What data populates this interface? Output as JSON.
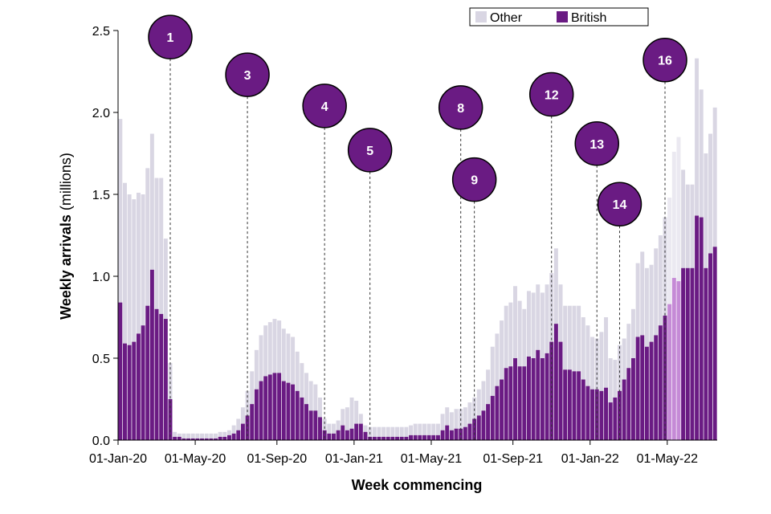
{
  "chart_data": {
    "type": "bar",
    "stacked": true,
    "title": "",
    "xlabel": "Week commencing",
    "ylabel": "Weekly arrivals",
    "ylabel_unit": "(millions)",
    "ylim": [
      0,
      2.5
    ],
    "yticks": [
      "0.0",
      "0.5",
      "1.0",
      "1.5",
      "2.0",
      "2.5"
    ],
    "x_tick_labels": [
      "01-Jan-20",
      "01-May-20",
      "01-Sep-20",
      "01-Jan-21",
      "01-May-21",
      "01-Sep-21",
      "01-Jan-22",
      "01-May-22"
    ],
    "x_tick_weeks": [
      0,
      17,
      35,
      52,
      69,
      87,
      104,
      121
    ],
    "legend": {
      "position": "top-right",
      "entries": [
        "Other",
        "British"
      ]
    },
    "colors": {
      "other": "#d9d6e3",
      "british": "#6a1b83",
      "other_light": "#ebe9f1",
      "british_light": "#c58ad6",
      "marker": "#6a1b83"
    },
    "provisional_weeks": [
      121,
      122,
      123
    ],
    "series": [
      {
        "name": "British",
        "values": [
          0.84,
          0.59,
          0.58,
          0.6,
          0.65,
          0.7,
          0.82,
          1.04,
          0.8,
          0.77,
          0.74,
          0.25,
          0.02,
          0.02,
          0.01,
          0.01,
          0.01,
          0.01,
          0.01,
          0.01,
          0.01,
          0.01,
          0.02,
          0.02,
          0.03,
          0.04,
          0.06,
          0.1,
          0.15,
          0.22,
          0.31,
          0.36,
          0.39,
          0.4,
          0.41,
          0.41,
          0.36,
          0.35,
          0.34,
          0.3,
          0.26,
          0.22,
          0.18,
          0.18,
          0.14,
          0.06,
          0.04,
          0.04,
          0.06,
          0.09,
          0.06,
          0.07,
          0.1,
          0.1,
          0.05,
          0.02,
          0.02,
          0.02,
          0.02,
          0.02,
          0.02,
          0.02,
          0.02,
          0.02,
          0.03,
          0.03,
          0.03,
          0.03,
          0.03,
          0.03,
          0.03,
          0.06,
          0.09,
          0.06,
          0.07,
          0.07,
          0.08,
          0.1,
          0.13,
          0.15,
          0.18,
          0.22,
          0.27,
          0.33,
          0.37,
          0.44,
          0.45,
          0.5,
          0.45,
          0.45,
          0.51,
          0.5,
          0.55,
          0.5,
          0.53,
          0.6,
          0.71,
          0.6,
          0.43,
          0.43,
          0.42,
          0.42,
          0.37,
          0.33,
          0.31,
          0.31,
          0.3,
          0.32,
          0.23,
          0.26,
          0.3,
          0.37,
          0.44,
          0.5,
          0.63,
          0.64,
          0.57,
          0.6,
          0.64,
          0.7,
          0.76,
          0.83,
          0.99,
          0.97,
          1.05,
          1.05,
          1.05,
          1.37,
          1.36,
          1.05,
          1.14,
          1.18
        ]
      },
      {
        "name": "Other",
        "values": [
          1.12,
          0.98,
          0.92,
          0.87,
          0.86,
          0.8,
          0.84,
          0.83,
          0.8,
          0.83,
          0.49,
          0.22,
          0.03,
          0.02,
          0.03,
          0.03,
          0.03,
          0.03,
          0.03,
          0.03,
          0.03,
          0.03,
          0.03,
          0.03,
          0.03,
          0.05,
          0.07,
          0.1,
          0.15,
          0.2,
          0.24,
          0.28,
          0.31,
          0.32,
          0.33,
          0.32,
          0.32,
          0.3,
          0.29,
          0.24,
          0.21,
          0.19,
          0.18,
          0.16,
          0.12,
          0.07,
          0.06,
          0.06,
          0.06,
          0.1,
          0.14,
          0.19,
          0.14,
          0.06,
          0.04,
          0.06,
          0.06,
          0.06,
          0.06,
          0.06,
          0.06,
          0.06,
          0.06,
          0.06,
          0.06,
          0.07,
          0.07,
          0.07,
          0.07,
          0.07,
          0.07,
          0.1,
          0.11,
          0.11,
          0.12,
          0.12,
          0.12,
          0.13,
          0.13,
          0.16,
          0.18,
          0.21,
          0.3,
          0.32,
          0.36,
          0.38,
          0.39,
          0.44,
          0.4,
          0.35,
          0.4,
          0.4,
          0.4,
          0.4,
          0.42,
          0.42,
          0.46,
          0.35,
          0.39,
          0.39,
          0.4,
          0.4,
          0.38,
          0.37,
          0.32,
          0.31,
          0.36,
          0.43,
          0.27,
          0.23,
          0.28,
          0.25,
          0.27,
          0.3,
          0.45,
          0.51,
          0.48,
          0.47,
          0.53,
          0.55,
          0.6,
          0.65,
          0.77,
          0.88,
          0.6,
          0.51,
          0.51,
          0.96,
          0.78,
          0.7,
          0.73,
          0.85
        ]
      }
    ],
    "annotations": [
      {
        "label": "1",
        "week": 11,
        "level": 2.46
      },
      {
        "label": "3",
        "week": 28,
        "level": 2.23
      },
      {
        "label": "4",
        "week": 45,
        "level": 2.04
      },
      {
        "label": "5",
        "week": 55,
        "level": 1.77
      },
      {
        "label": "8",
        "week": 75,
        "level": 2.03
      },
      {
        "label": "9",
        "week": 78,
        "level": 1.59
      },
      {
        "label": "12",
        "week": 95,
        "level": 2.11
      },
      {
        "label": "13",
        "week": 105,
        "level": 1.81
      },
      {
        "label": "14",
        "week": 110,
        "level": 1.44
      },
      {
        "label": "16",
        "week": 120,
        "level": 2.32
      }
    ]
  }
}
